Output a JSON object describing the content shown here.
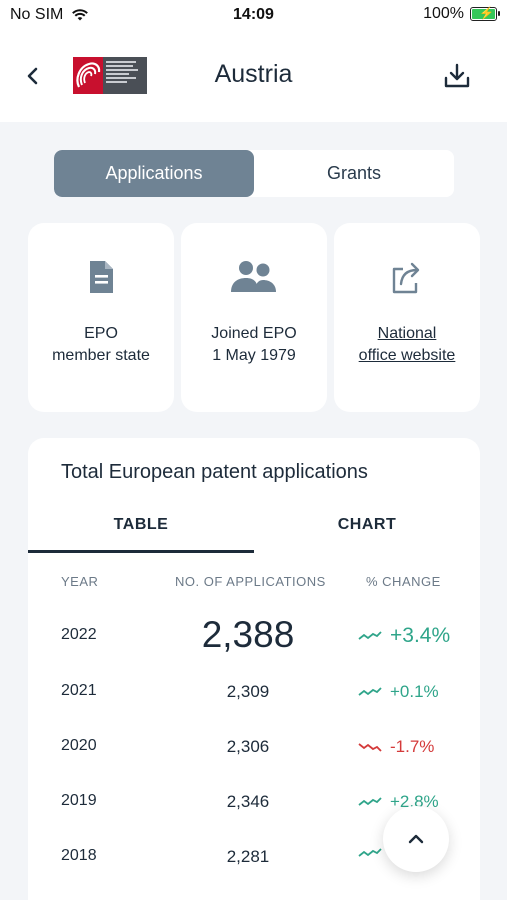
{
  "status_bar": {
    "carrier": "No SIM",
    "time": "14:09",
    "battery": "100%"
  },
  "header": {
    "title": "Austria"
  },
  "segment": {
    "applications": "Applications",
    "grants": "Grants",
    "selected": "Applications"
  },
  "cards": {
    "member": "EPO\nmember state",
    "joined": "Joined EPO\n1 May 1979",
    "website": "National\noffice website"
  },
  "panel": {
    "title": "Total European patent applications",
    "tab_table": "TABLE",
    "tab_chart": "CHART",
    "col_year": "YEAR",
    "col_apps": "NO. OF APPLICATIONS",
    "col_change": "% CHANGE",
    "rows": [
      {
        "year": "2022",
        "value": "2,388",
        "change": "+3.4%",
        "trend": "up"
      },
      {
        "year": "2021",
        "value": "2,309",
        "change": "+0.1%",
        "trend": "up"
      },
      {
        "year": "2020",
        "value": "2,306",
        "change": "-1.7%",
        "trend": "down"
      },
      {
        "year": "2019",
        "value": "2,346",
        "change": "+2.8%",
        "trend": "up"
      },
      {
        "year": "2018",
        "value": "2,281",
        "change": "",
        "trend": "up"
      }
    ]
  },
  "colors": {
    "accent": "#6f8394",
    "up": "#2fa58a",
    "down": "#d43a3a",
    "text": "#1d2b3a"
  },
  "icons": {
    "back": "chevron-left-icon",
    "download": "download-icon",
    "member": "document-icon",
    "joined": "people-icon",
    "website": "external-link-icon",
    "fab": "chevron-up-icon"
  }
}
